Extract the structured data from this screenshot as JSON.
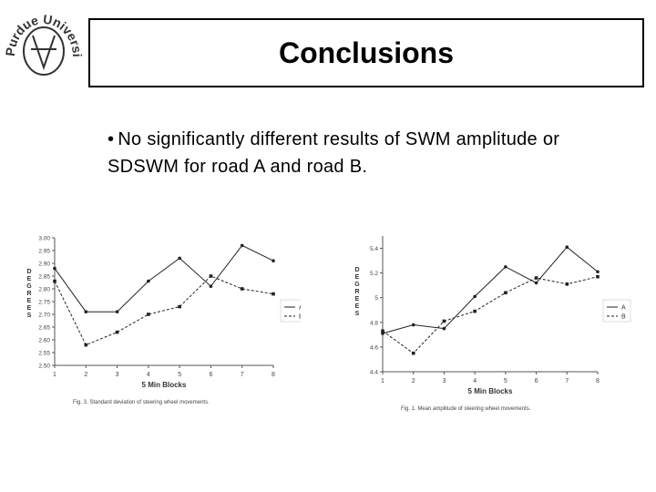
{
  "logo": "Purdue University",
  "slide": {
    "title": "Conclusions",
    "bullet": "No significantly different results of SWM amplitude or SDSWM for road A and road B."
  },
  "chart_data": [
    {
      "type": "line",
      "caption": "Fig. 3. Standard deviation of steering wheel movements.",
      "x_label": "5 Min Blocks",
      "y_label": "DEGREES",
      "x": [
        1,
        2,
        3,
        4,
        5,
        6,
        7,
        8
      ],
      "xlim": [
        1,
        8
      ],
      "xticks": [
        1,
        2,
        3,
        4,
        5,
        6,
        7,
        8
      ],
      "ylim": [
        2.5,
        3.0
      ],
      "yticks": [
        {
          "value": 2.5,
          "label": "2.50"
        },
        2.55,
        {
          "value": 2.6,
          "label": "2.60"
        },
        2.65,
        {
          "value": 2.7,
          "label": "2.70"
        },
        2.75,
        {
          "value": 2.8,
          "label": "2.80"
        },
        2.85,
        {
          "value": 2.9,
          "label": "2.90"
        },
        2.95,
        {
          "value": 3.0,
          "label": "3.00"
        }
      ],
      "series": [
        {
          "name": "A",
          "color": "#222222",
          "dash": false,
          "values": [
            2.88,
            2.71,
            2.71,
            2.83,
            2.92,
            2.81,
            2.97,
            2.91
          ]
        },
        {
          "name": "B",
          "color": "#222222",
          "dash": true,
          "values": [
            2.83,
            2.58,
            2.63,
            2.7,
            2.73,
            2.85,
            2.8,
            2.78
          ]
        }
      ]
    },
    {
      "type": "line",
      "caption": "Fig. 1. Mean amplitude of steering wheel movements.",
      "x_label": "5 Min Blocks",
      "y_label": "DEGREES",
      "x": [
        1,
        2,
        3,
        4,
        5,
        6,
        7,
        8
      ],
      "xlim": [
        1,
        8
      ],
      "xticks": [
        1,
        2,
        3,
        4,
        5,
        6,
        7,
        8
      ],
      "ylim": [
        4.4,
        5.5
      ],
      "yticks": [
        4.4,
        4.6,
        4.8,
        5,
        5.2,
        5.4
      ],
      "series": [
        {
          "name": "A",
          "color": "#222222",
          "dash": false,
          "values": [
            4.71,
            4.78,
            4.75,
            5.01,
            5.25,
            5.12,
            5.41,
            5.21
          ]
        },
        {
          "name": "B",
          "color": "#222222",
          "dash": true,
          "values": [
            4.73,
            4.55,
            4.81,
            4.89,
            5.04,
            5.16,
            5.11,
            5.17
          ]
        }
      ]
    }
  ]
}
